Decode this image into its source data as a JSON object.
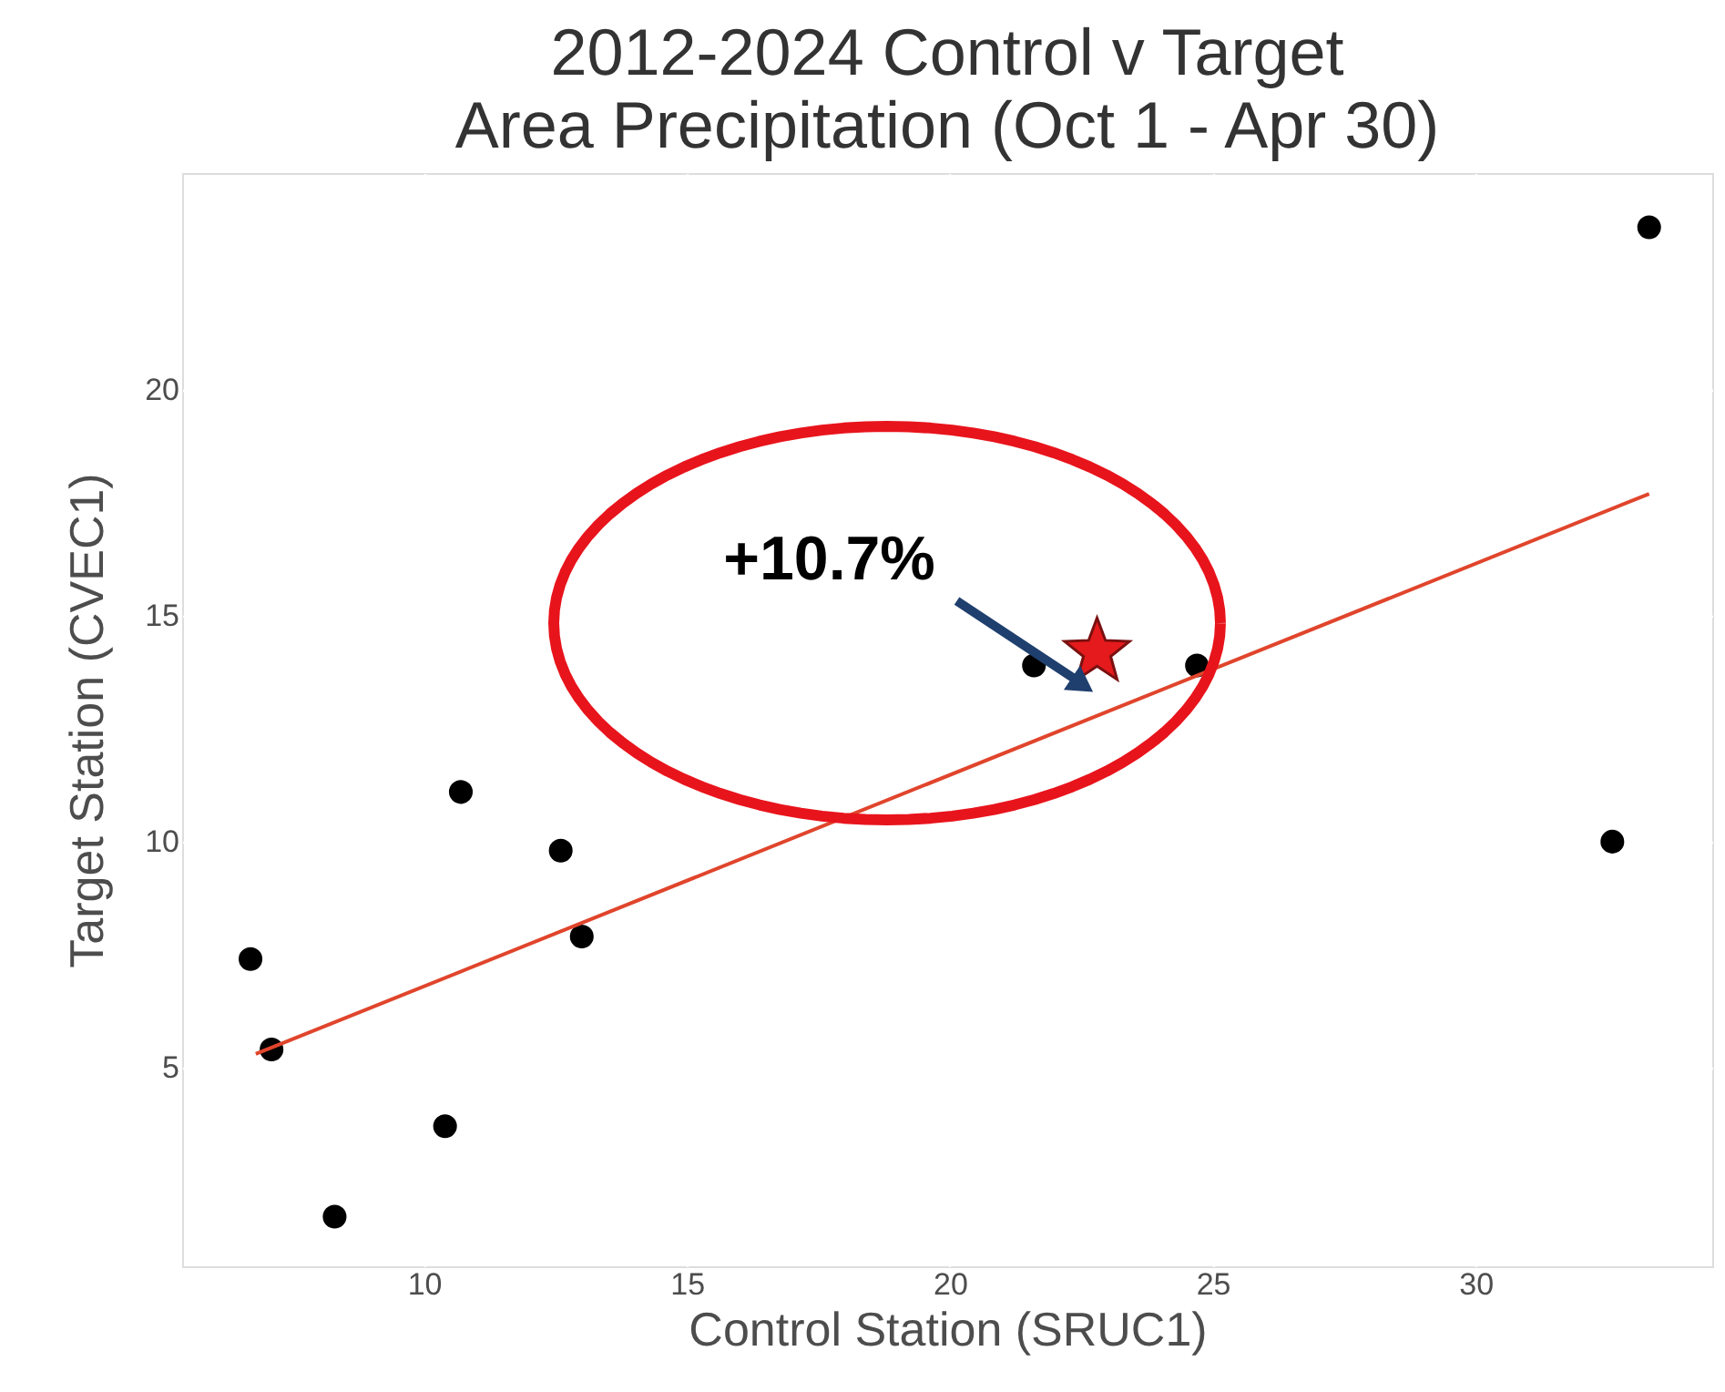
{
  "chart_data": {
    "type": "scatter",
    "title": "2012-2024 Control v Target\nArea Precipitation (Oct 1 - Apr 30)",
    "xlabel": "Control Station (SRUC1)",
    "ylabel": "Target Station (CVEC1)",
    "xlim": [
      5.4,
      34.5
    ],
    "ylim": [
      0.6,
      24.8
    ],
    "xticks": [
      10,
      15,
      20,
      25,
      30
    ],
    "yticks": [
      5,
      10,
      15,
      20
    ],
    "grid": true,
    "series": [
      {
        "color": "#000000",
        "marker": "circle",
        "x": [
          6.7,
          7.1,
          8.3,
          10.4,
          10.7,
          12.6,
          13.0,
          21.6,
          24.7,
          32.6,
          33.3
        ],
        "values": [
          7.4,
          5.4,
          1.7,
          3.7,
          11.1,
          9.8,
          7.9,
          13.9,
          13.9,
          10.0,
          23.6
        ]
      },
      {
        "type": "scatter",
        "color": "#e41a1c",
        "marker": "star",
        "x": [
          22.8
        ],
        "values": [
          14.2
        ]
      },
      {
        "type": "line",
        "color": "#e0452c",
        "marker": "none",
        "x": [
          6.8,
          33.3
        ],
        "values": [
          5.3,
          17.7
        ]
      }
    ],
    "annotations": [
      {
        "text": "+10.7%",
        "x": 22.8,
        "y": 14.2
      }
    ]
  }
}
